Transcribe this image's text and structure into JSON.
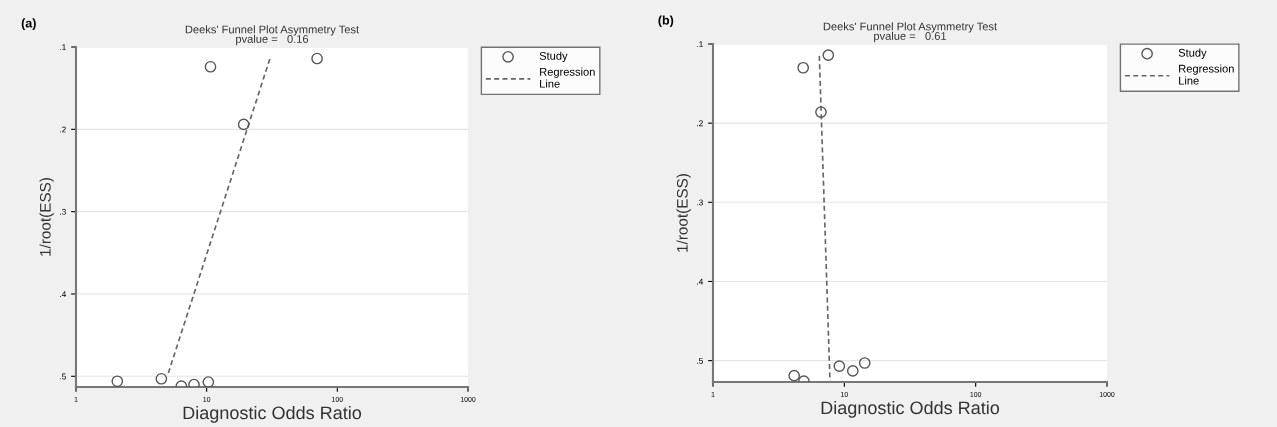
{
  "chart_data": [
    {
      "type": "scatter",
      "title": "Deeks' Funnel Plot Asymmetry Test",
      "subtitle": "pvalue =   0.16",
      "xlabel": "Diagnostic Odds Ratio",
      "ylabel": "1/root(ESS)",
      "annotations": [
        "(a)"
      ],
      "log": "x",
      "xlim": [
        1,
        1000
      ],
      "xticks": [
        1,
        10,
        100,
        1000
      ],
      "ylim": [
        0.513,
        0.1
      ],
      "yticks": [
        {
          "value": 0.1,
          "label": ".1"
        },
        {
          "value": 0.2,
          "label": ".2"
        },
        {
          "value": 0.3,
          "label": ".3"
        },
        {
          "value": 0.4,
          "label": ".4"
        },
        {
          "value": 0.5,
          "label": ".5"
        }
      ],
      "grid": "y",
      "legend": "right",
      "series": [
        {
          "name": "Study",
          "marker": "circle",
          "color": "#555555",
          "x": [
            10.7,
            70,
            19.2,
            2.07,
            4.5,
            6.4,
            8.0,
            10.3
          ],
          "values": [
            0.124,
            0.114,
            0.194,
            0.506,
            0.503,
            0.512,
            0.51,
            0.507
          ]
        },
        {
          "name": "Regression\nLine",
          "type": "line",
          "line_style": "dashed",
          "color": "#666666",
          "x": [
            5.09,
            30.5
          ],
          "values": [
            0.496,
            0.114
          ]
        }
      ]
    },
    {
      "type": "scatter",
      "title": "Deeks' Funnel Plot Asymmetry Test",
      "subtitle": "pvalue =   0.61",
      "xlabel": "Diagnostic Odds Ratio",
      "ylabel": "1/root(ESS)",
      "annotations": [
        "(b)"
      ],
      "log": "x",
      "xlim": [
        1,
        1000
      ],
      "xticks": [
        1,
        10,
        100,
        1000
      ],
      "ylim": [
        0.527,
        0.1
      ],
      "yticks": [
        {
          "value": 0.1,
          "label": ".1"
        },
        {
          "value": 0.2,
          "label": ".2"
        },
        {
          "value": 0.3,
          "label": ".3"
        },
        {
          "value": 0.4,
          "label": ".4"
        },
        {
          "value": 0.5,
          "label": ".5"
        }
      ],
      "grid": "y",
      "legend": "right",
      "series": [
        {
          "name": "Study",
          "marker": "circle",
          "color": "#555555",
          "x": [
            7.55,
            4.86,
            6.64,
            4.15,
            4.92,
            9.16,
            11.6,
            14.3
          ],
          "values": [
            0.114,
            0.13,
            0.186,
            0.519,
            0.526,
            0.507,
            0.513,
            0.503
          ]
        },
        {
          "name": "Regression\nLine",
          "type": "line",
          "line_style": "dashed",
          "color": "#666666",
          "x": [
            6.45,
            7.78
          ],
          "values": [
            0.115,
            0.527
          ]
        }
      ]
    }
  ]
}
